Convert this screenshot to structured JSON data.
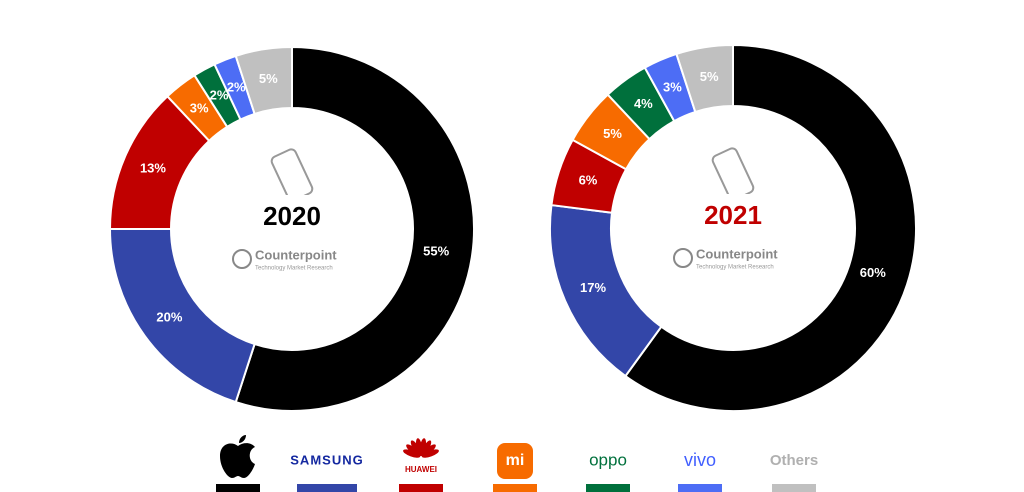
{
  "chart_data": [
    {
      "type": "pie",
      "title": "2020",
      "title_color": "#000000",
      "values": [
        55,
        20,
        13,
        3,
        2,
        2,
        5
      ],
      "value_labels": [
        "55%",
        "20%",
        "13%",
        "3%",
        "2%",
        "2%",
        "5%"
      ]
    },
    {
      "type": "pie",
      "title": "2021",
      "title_color": "#c00000",
      "values": [
        60,
        17,
        6,
        5,
        4,
        3,
        5
      ],
      "value_labels": [
        "60%",
        "17%",
        "6%",
        "5%",
        "4%",
        "3%",
        "5%"
      ]
    }
  ],
  "legend": {
    "categories": [
      null,
      "SAMSUNG",
      "HUAWEI",
      "mi",
      "oppo",
      "vivo",
      "Others"
    ],
    "colors": [
      "#000000",
      "#3346a8",
      "#c00000",
      "#f76b00",
      "#00703c",
      "#4d6df5",
      "#c0c0c0"
    ]
  },
  "watermark": {
    "name": "Counterpoint",
    "tagline": "Technology Market Research"
  }
}
